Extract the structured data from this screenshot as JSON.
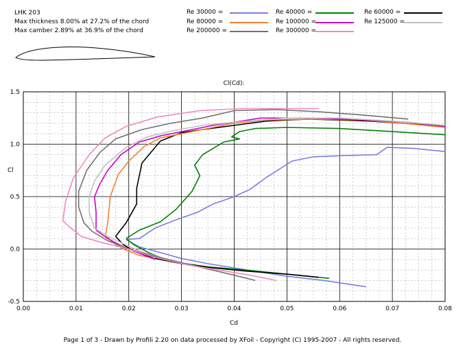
{
  "header": {
    "airfoil_name": "LHK  203",
    "thickness_text": "Max thickness 8.00% at 27.2% of the chord",
    "camber_text": "Max camber 2.89% at 36.9% of the chord"
  },
  "footer": {
    "text": "Page 1 of 3   -   Drawn by Profili 2.20 on data processed by  XFoil - Copyright (C) 1995-2007 - All rights reserved."
  },
  "chart_data": {
    "type": "line",
    "title": "Cl(Cd):",
    "xlabel": "Cd",
    "ylabel": "Cl",
    "xlim": [
      0.0,
      0.08
    ],
    "ylim": [
      -0.5,
      1.5
    ],
    "x_ticks": [
      "0.00",
      "0.01",
      "0.02",
      "0.03",
      "0.04",
      "0.05",
      "0.06",
      "0.07",
      "0.08"
    ],
    "y_ticks": [
      "-0.5",
      "0.0",
      "0.5",
      "1.0",
      "1.5"
    ],
    "grid": true,
    "legend_position": "top",
    "series": [
      {
        "name": "Re 30000 =",
        "color": "#7b7bea",
        "points": [
          [
            0.0195,
            0.09
          ],
          [
            0.022,
            0.1
          ],
          [
            0.025,
            0.2
          ],
          [
            0.029,
            0.28
          ],
          [
            0.033,
            0.35
          ],
          [
            0.036,
            0.43
          ],
          [
            0.04,
            0.5
          ],
          [
            0.043,
            0.57
          ],
          [
            0.046,
            0.68
          ],
          [
            0.051,
            0.84
          ],
          [
            0.055,
            0.88
          ],
          [
            0.06,
            0.89
          ],
          [
            0.067,
            0.9
          ],
          [
            0.069,
            0.97
          ],
          [
            0.074,
            0.96
          ],
          [
            0.08,
            0.93
          ]
        ]
      },
      {
        "name": "Re 40000 =",
        "color": "#008000",
        "points": [
          [
            0.0195,
            0.1
          ],
          [
            0.022,
            0.18
          ],
          [
            0.026,
            0.26
          ],
          [
            0.029,
            0.38
          ],
          [
            0.032,
            0.55
          ],
          [
            0.0335,
            0.7
          ],
          [
            0.0325,
            0.8
          ],
          [
            0.034,
            0.9
          ],
          [
            0.038,
            1.02
          ],
          [
            0.041,
            1.05
          ],
          [
            0.0395,
            1.07
          ],
          [
            0.041,
            1.12
          ],
          [
            0.044,
            1.15
          ],
          [
            0.05,
            1.16
          ],
          [
            0.06,
            1.15
          ],
          [
            0.07,
            1.12
          ],
          [
            0.08,
            1.09
          ]
        ]
      },
      {
        "name": "Re 60000 =",
        "color": "#000000",
        "points": [
          [
            0.0175,
            0.12
          ],
          [
            0.0195,
            0.25
          ],
          [
            0.0215,
            0.43
          ],
          [
            0.0215,
            0.58
          ],
          [
            0.0225,
            0.82
          ],
          [
            0.026,
            1.03
          ],
          [
            0.03,
            1.11
          ],
          [
            0.034,
            1.14
          ],
          [
            0.04,
            1.18
          ],
          [
            0.046,
            1.22
          ],
          [
            0.054,
            1.24
          ],
          [
            0.066,
            1.22
          ],
          [
            0.072,
            1.2
          ],
          [
            0.08,
            1.17
          ]
        ]
      },
      {
        "name": "Re 80000 =",
        "color": "#f28030",
        "points": [
          [
            0.0156,
            0.13
          ],
          [
            0.016,
            0.25
          ],
          [
            0.0165,
            0.5
          ],
          [
            0.018,
            0.71
          ],
          [
            0.02,
            0.84
          ],
          [
            0.023,
            0.98
          ],
          [
            0.026,
            1.06
          ],
          [
            0.031,
            1.11
          ],
          [
            0.036,
            1.16
          ],
          [
            0.04,
            1.2
          ],
          [
            0.046,
            1.23
          ],
          [
            0.055,
            1.24
          ],
          [
            0.065,
            1.23
          ],
          [
            0.072,
            1.2
          ],
          [
            0.08,
            1.16
          ]
        ]
      },
      {
        "name": "Re 100000 =",
        "color": "#cc00cc",
        "points": [
          [
            0.0138,
            0.18
          ],
          [
            0.0138,
            0.35
          ],
          [
            0.0135,
            0.5
          ],
          [
            0.0145,
            0.62
          ],
          [
            0.016,
            0.75
          ],
          [
            0.0185,
            0.9
          ],
          [
            0.022,
            1.02
          ],
          [
            0.026,
            1.08
          ],
          [
            0.032,
            1.14
          ],
          [
            0.036,
            1.18
          ],
          [
            0.04,
            1.21
          ],
          [
            0.045,
            1.25
          ],
          [
            0.055,
            1.25
          ],
          [
            0.065,
            1.23
          ],
          [
            0.073,
            1.21
          ],
          [
            0.08,
            1.17
          ]
        ]
      },
      {
        "name": "Re 125000 =",
        "color": "#c0c0c0",
        "points": [
          [
            0.0135,
            0.2
          ],
          [
            0.0125,
            0.35
          ],
          [
            0.0125,
            0.5
          ],
          [
            0.0135,
            0.65
          ],
          [
            0.0155,
            0.8
          ],
          [
            0.0195,
            0.97
          ],
          [
            0.0235,
            1.07
          ],
          [
            0.0285,
            1.13
          ],
          [
            0.034,
            1.18
          ],
          [
            0.04,
            1.21
          ],
          [
            0.05,
            1.25
          ],
          [
            0.06,
            1.25
          ],
          [
            0.07,
            1.22
          ],
          [
            0.08,
            1.18
          ]
        ]
      },
      {
        "name": "Re 200000 =",
        "color": "#707070",
        "points": [
          [
            0.0115,
            0.25
          ],
          [
            0.0105,
            0.4
          ],
          [
            0.0105,
            0.55
          ],
          [
            0.012,
            0.75
          ],
          [
            0.0145,
            0.92
          ],
          [
            0.0175,
            1.05
          ],
          [
            0.0225,
            1.14
          ],
          [
            0.028,
            1.2
          ],
          [
            0.034,
            1.25
          ],
          [
            0.04,
            1.32
          ],
          [
            0.048,
            1.33
          ],
          [
            0.056,
            1.31
          ],
          [
            0.064,
            1.28
          ],
          [
            0.073,
            1.24
          ]
        ]
      },
      {
        "name": "Re 300000 =",
        "color": "#f088c0",
        "points": [
          [
            0.0075,
            0.27
          ],
          [
            0.008,
            0.45
          ],
          [
            0.0095,
            0.68
          ],
          [
            0.0125,
            0.9
          ],
          [
            0.0155,
            1.06
          ],
          [
            0.0195,
            1.17
          ],
          [
            0.0255,
            1.26
          ],
          [
            0.0335,
            1.32
          ],
          [
            0.0415,
            1.34
          ],
          [
            0.0505,
            1.34
          ],
          [
            0.056,
            1.34
          ]
        ]
      }
    ]
  },
  "lower_branches": [
    {
      "series": 0,
      "points": [
        [
          0.0195,
          0.09
        ],
        [
          0.022,
          0.02
        ],
        [
          0.025,
          -0.02
        ],
        [
          0.03,
          -0.09
        ],
        [
          0.035,
          -0.14
        ],
        [
          0.04,
          -0.18
        ],
        [
          0.045,
          -0.22
        ],
        [
          0.05,
          -0.26
        ],
        [
          0.057,
          -0.3
        ],
        [
          0.065,
          -0.36
        ]
      ]
    },
    {
      "series": 1,
      "points": [
        [
          0.0195,
          0.1
        ],
        [
          0.021,
          0.04
        ],
        [
          0.024,
          -0.04
        ],
        [
          0.028,
          -0.12
        ],
        [
          0.035,
          -0.17
        ],
        [
          0.042,
          -0.2
        ],
        [
          0.05,
          -0.24
        ],
        [
          0.058,
          -0.28
        ]
      ]
    },
    {
      "series": 2,
      "points": [
        [
          0.0175,
          0.12
        ],
        [
          0.019,
          0.04
        ],
        [
          0.021,
          -0.02
        ],
        [
          0.025,
          -0.09
        ],
        [
          0.03,
          -0.14
        ],
        [
          0.036,
          -0.18
        ],
        [
          0.042,
          -0.21
        ],
        [
          0.05,
          -0.24
        ],
        [
          0.056,
          -0.27
        ]
      ]
    },
    {
      "series": 3,
      "points": [
        [
          0.0156,
          0.13
        ],
        [
          0.017,
          0.06
        ],
        [
          0.019,
          0.0
        ],
        [
          0.022,
          -0.06
        ],
        [
          0.025,
          -0.09
        ]
      ]
    },
    {
      "series": 4,
      "points": [
        [
          0.0138,
          0.18
        ],
        [
          0.016,
          0.1
        ],
        [
          0.019,
          0.02
        ],
        [
          0.023,
          -0.06
        ],
        [
          0.025,
          -0.1
        ]
      ]
    },
    {
      "series": 5,
      "points": [
        [
          0.0135,
          0.2
        ],
        [
          0.016,
          0.12
        ],
        [
          0.019,
          0.05
        ],
        [
          0.022,
          -0.02
        ],
        [
          0.026,
          -0.08
        ]
      ]
    },
    {
      "series": 6,
      "points": [
        [
          0.0115,
          0.25
        ],
        [
          0.013,
          0.17
        ],
        [
          0.016,
          0.08
        ],
        [
          0.02,
          0.0
        ],
        [
          0.025,
          -0.07
        ],
        [
          0.03,
          -0.13
        ],
        [
          0.035,
          -0.19
        ],
        [
          0.04,
          -0.25
        ],
        [
          0.044,
          -0.3
        ]
      ]
    },
    {
      "series": 7,
      "points": [
        [
          0.0075,
          0.27
        ],
        [
          0.009,
          0.2
        ],
        [
          0.011,
          0.12
        ],
        [
          0.015,
          0.06
        ],
        [
          0.02,
          0.0
        ],
        [
          0.025,
          -0.08
        ],
        [
          0.031,
          -0.15
        ],
        [
          0.037,
          -0.2
        ],
        [
          0.043,
          -0.25
        ],
        [
          0.048,
          -0.3
        ]
      ]
    }
  ]
}
